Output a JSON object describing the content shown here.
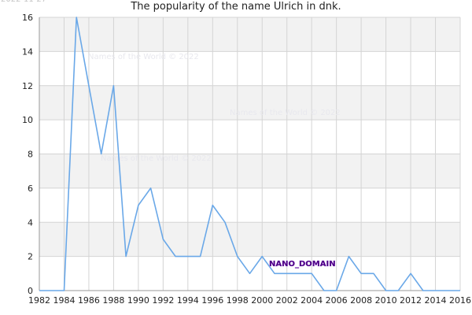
{
  "header": {
    "date_stamp": "2022-11-27",
    "title": "The popularity of the name Ulrich in dnk."
  },
  "watermarks": [
    "Names of the World © 2022",
    "Names of the World © 2022",
    "Names of the World © 2022"
  ],
  "badge": "NANO_DOMAIN",
  "colors": {
    "line": "#6aa8e8",
    "band": "#f2f2f2",
    "grid": "#d4d4d4",
    "axis": "#999999"
  },
  "chart_data": {
    "type": "line",
    "title": "The popularity of the name Ulrich in dnk.",
    "xlabel": "",
    "ylabel": "",
    "xlim": [
      1982,
      2016
    ],
    "ylim": [
      0,
      16
    ],
    "x_ticks": [
      "1982",
      "1984",
      "1986",
      "1988",
      "1990",
      "1992",
      "1994",
      "1996",
      "1998",
      "2000",
      "2002",
      "2004",
      "2006",
      "2008",
      "2010",
      "2012",
      "2014",
      "2016"
    ],
    "y_ticks": [
      "0",
      "2",
      "4",
      "6",
      "8",
      "10",
      "12",
      "14",
      "16"
    ],
    "grid": true,
    "series": [
      {
        "x": [
          1982,
          1983,
          1984,
          1985,
          1986,
          1987,
          1988,
          1989,
          1990,
          1991,
          1992,
          1993,
          1994,
          1995,
          1996,
          1997,
          1998,
          1999,
          2000,
          2001,
          2002,
          2003,
          2004,
          2005,
          2006,
          2007,
          2008,
          2009,
          2010,
          2011,
          2012,
          2013,
          2014,
          2015,
          2016
        ],
        "values": [
          0,
          0,
          0,
          16,
          12,
          8,
          12,
          2,
          5,
          6,
          3,
          2,
          2,
          2,
          5,
          4,
          2,
          1,
          2,
          1,
          1,
          1,
          1,
          0,
          0,
          2,
          1,
          1,
          0,
          0,
          1,
          0,
          0,
          0,
          0
        ]
      }
    ]
  }
}
